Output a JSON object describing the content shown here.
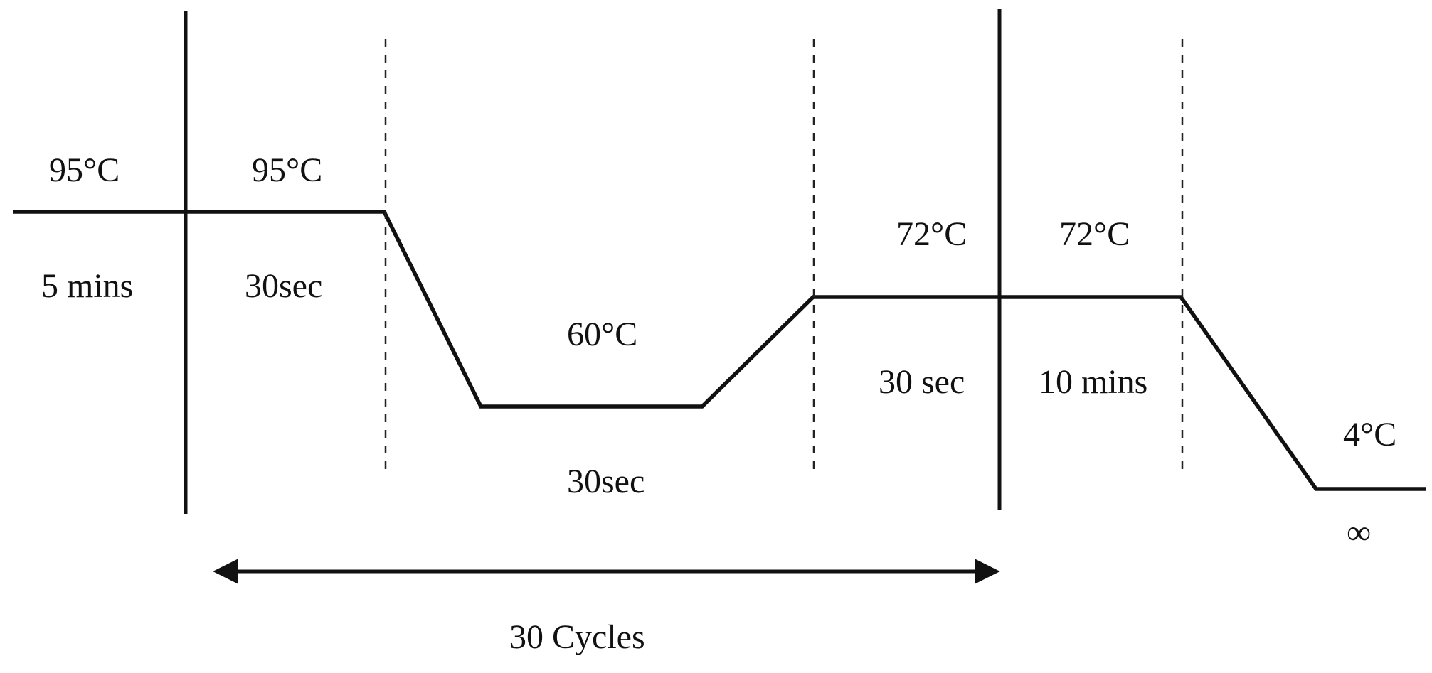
{
  "steps": {
    "initial_denaturation": {
      "temperature": "95°C",
      "duration": "5 mins"
    },
    "denaturation": {
      "temperature": "95°C",
      "duration": "30sec"
    },
    "annealing": {
      "temperature": "60°C",
      "duration": "30sec"
    },
    "extension": {
      "temperature": "72°C",
      "duration": "30 sec"
    },
    "final_extension": {
      "temperature": "72°C",
      "duration": "10 mins"
    },
    "hold": {
      "temperature": "4°C",
      "duration": "∞"
    }
  },
  "cycles_label": "30 Cycles"
}
